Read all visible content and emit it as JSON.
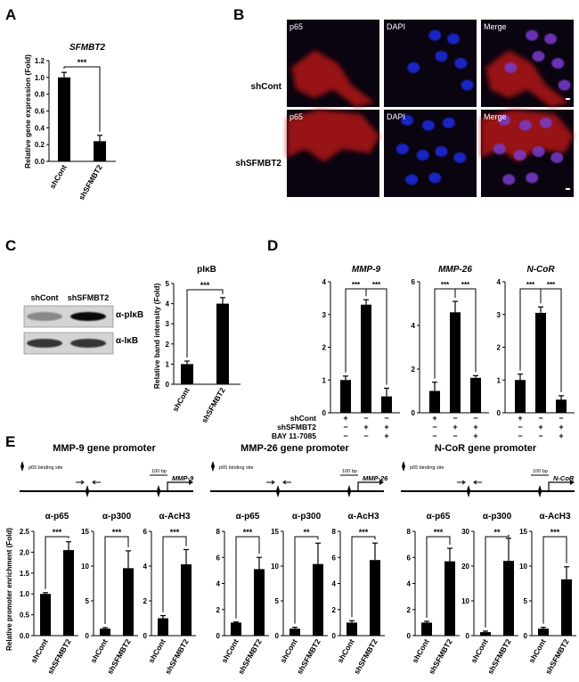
{
  "panels": {
    "A": "A",
    "B": "B",
    "C": "C",
    "D": "D",
    "E": "E"
  },
  "panel_A": {
    "chart_data": {
      "type": "bar",
      "title": "SFMBT2",
      "ylabel": "Relative gene expression (Fold)",
      "categories": [
        "shCont",
        "shSFMBT2"
      ],
      "values": [
        1.0,
        0.24
      ],
      "errors": [
        0.06,
        0.07
      ],
      "ylim": [
        0,
        1.2
      ],
      "yticks": [
        "0.0",
        "0.2",
        "0.4",
        "0.6",
        "0.8",
        "1.0",
        "1.2"
      ],
      "significance": "***"
    }
  },
  "panel_B": {
    "columns": [
      "p65",
      "DAPI",
      "Merge"
    ],
    "rows": [
      "shCont",
      "shSFMBT2"
    ]
  },
  "panel_C": {
    "blot": {
      "lanes": [
        "shCont",
        "shSFMBT2"
      ],
      "bands": [
        "α-pIκB",
        "α-IκB"
      ],
      "band_intensity": [
        [
          0.35,
          0.95
        ],
        [
          0.75,
          0.75
        ]
      ]
    },
    "chart_data": {
      "type": "bar",
      "title": "pIκB",
      "ylabel": "Relative band intensity (Fold)",
      "categories": [
        "shCont",
        "shSFMBT2"
      ],
      "values": [
        1.0,
        4.0
      ],
      "errors": [
        0.15,
        0.3
      ],
      "ylim": [
        0,
        5
      ],
      "yticks": [
        "0",
        "1",
        "2",
        "3",
        "4",
        "5"
      ],
      "significance": "***"
    }
  },
  "panel_D": {
    "chart_data": [
      {
        "type": "bar",
        "title": "MMP-9",
        "values": [
          1.0,
          3.3,
          0.5
        ],
        "errors": [
          0.12,
          0.15,
          0.25
        ],
        "ylim": [
          0,
          4
        ],
        "yticks": [
          "0",
          "1",
          "2",
          "3",
          "4"
        ],
        "sig": [
          "***",
          "***"
        ]
      },
      {
        "type": "bar",
        "title": "MMP-26",
        "values": [
          1.0,
          4.6,
          1.6
        ],
        "errors": [
          0.4,
          0.5,
          0.1
        ],
        "ylim": [
          0,
          6
        ],
        "yticks": [
          "0",
          "2",
          "4",
          "6"
        ],
        "sig": [
          "***",
          "***"
        ]
      },
      {
        "type": "bar",
        "title": "N-CoR",
        "values": [
          1.0,
          3.05,
          0.4
        ],
        "errors": [
          0.18,
          0.18,
          0.12
        ],
        "ylim": [
          0,
          4
        ],
        "yticks": [
          "0",
          "1",
          "2",
          "3",
          "4"
        ],
        "sig": [
          "***",
          "***"
        ]
      }
    ],
    "conditions": {
      "labels": [
        "shCont",
        "shSFMBT2",
        "BAY 11-7085"
      ],
      "signs": [
        [
          "+",
          "−",
          "−"
        ],
        [
          "−",
          "+",
          "+"
        ],
        [
          "−",
          "−",
          "+"
        ]
      ]
    }
  },
  "panel_E": {
    "ylabel": "Relative promoter enrichment (Fold)",
    "categories": [
      "shCont",
      "shSFMBT2"
    ],
    "groups": [
      {
        "title": "MMP-9 gene promoter",
        "gene": "MMP-9",
        "legend": "p65 binding site",
        "scalebar": "100 bp",
        "charts": [
          {
            "title": "α-p65",
            "values": [
              1.0,
              2.05
            ],
            "errors": [
              0.03,
              0.2
            ],
            "ylim": [
              0,
              2.5
            ],
            "yticks": [
              "0.0",
              "0.5",
              "1.0",
              "1.5",
              "2.0",
              "2.5"
            ],
            "sig": "***"
          },
          {
            "title": "α-p300",
            "values": [
              1.0,
              9.7
            ],
            "errors": [
              0.15,
              2.5
            ],
            "ylim": [
              0,
              15
            ],
            "yticks": [
              "0",
              "5",
              "10",
              "15"
            ],
            "sig": "***"
          },
          {
            "title": "α-AcH3",
            "values": [
              1.0,
              4.1
            ],
            "errors": [
              0.15,
              0.85
            ],
            "ylim": [
              0,
              6
            ],
            "yticks": [
              "0",
              "2",
              "4",
              "6"
            ],
            "sig": "***"
          }
        ]
      },
      {
        "title": "MMP-26 gene promoter",
        "gene": "MMP-26",
        "legend": "p65 binding site",
        "scalebar": "100 bp",
        "charts": [
          {
            "title": "α-p65",
            "values": [
              1.0,
              5.1
            ],
            "errors": [
              0.05,
              0.9
            ],
            "ylim": [
              0,
              8
            ],
            "yticks": [
              "0",
              "2",
              "4",
              "6",
              "8"
            ],
            "sig": "***"
          },
          {
            "title": "α-p300",
            "values": [
              1.0,
              10.3
            ],
            "errors": [
              0.2,
              3.0
            ],
            "ylim": [
              0,
              15
            ],
            "yticks": [
              "0",
              "5",
              "10",
              "15"
            ],
            "sig": "**"
          },
          {
            "title": "α-AcH3",
            "values": [
              1.0,
              5.8
            ],
            "errors": [
              0.15,
              1.3
            ],
            "ylim": [
              0,
              8
            ],
            "yticks": [
              "0",
              "2",
              "4",
              "6",
              "8"
            ],
            "sig": "***"
          }
        ]
      },
      {
        "title": "N-CoR gene promoter",
        "gene": "N-CoR",
        "legend": "p65 binding site",
        "scalebar": "100 bp",
        "charts": [
          {
            "title": "α-p65",
            "values": [
              1.0,
              5.7
            ],
            "errors": [
              0.1,
              1.0
            ],
            "ylim": [
              0,
              8
            ],
            "yticks": [
              "0",
              "2",
              "4",
              "6",
              "8"
            ],
            "sig": "***"
          },
          {
            "title": "α-p300",
            "values": [
              1.0,
              21.5
            ],
            "errors": [
              0.3,
              6.5
            ],
            "ylim": [
              0,
              30
            ],
            "yticks": [
              "0",
              "10",
              "20",
              "30"
            ],
            "sig": "**"
          },
          {
            "title": "α-AcH3",
            "values": [
              1.0,
              8.1
            ],
            "errors": [
              0.2,
              1.8
            ],
            "ylim": [
              0,
              15
            ],
            "yticks": [
              "0",
              "5",
              "10",
              "15"
            ],
            "sig": "***"
          }
        ]
      }
    ]
  },
  "colors": {
    "bar": "#000000",
    "micro_bg": "#0a0410",
    "p65_signal": "#b01818",
    "dapi_signal": "#1a2ae0",
    "merge_nucleus": "#7a3acc"
  }
}
